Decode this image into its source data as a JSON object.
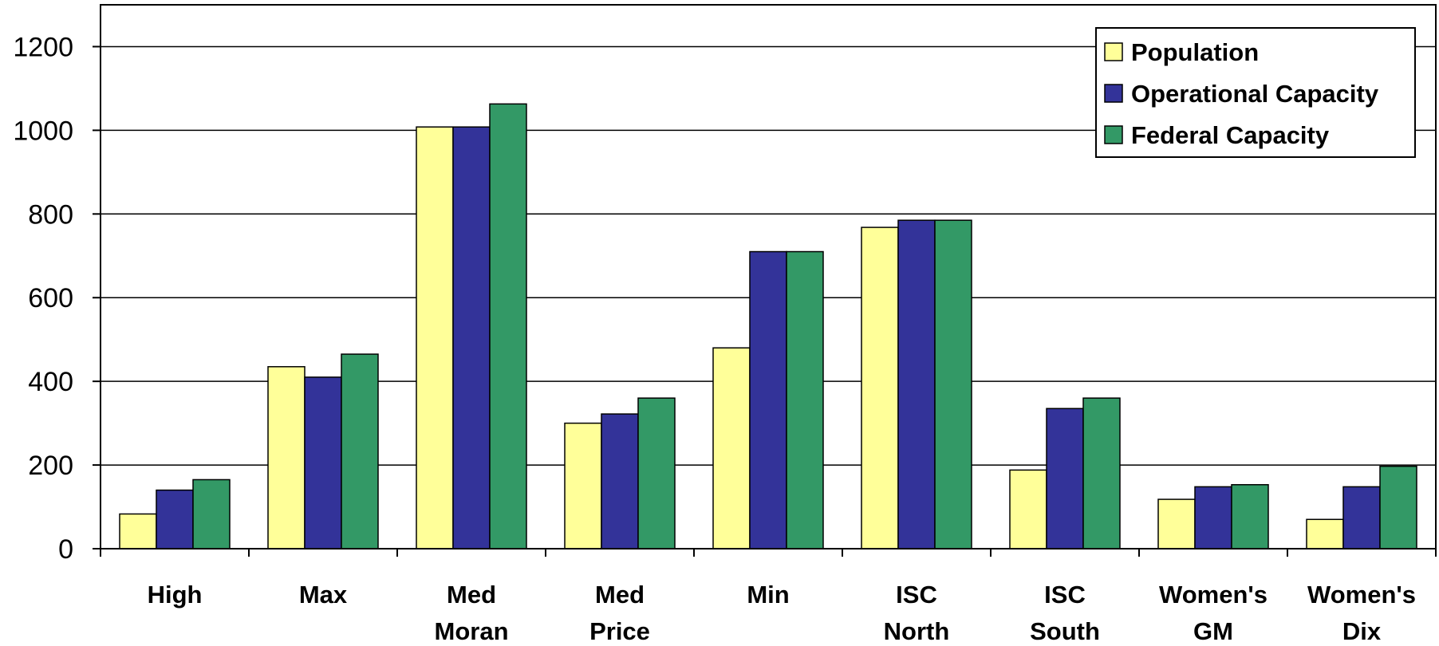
{
  "chart_data": {
    "type": "bar",
    "title": "",
    "xlabel": "",
    "ylabel": "",
    "categories": [
      [
        "High"
      ],
      [
        "Max"
      ],
      [
        "Med",
        "Moran"
      ],
      [
        "Med",
        "Price"
      ],
      [
        "Min"
      ],
      [
        "ISC",
        "North"
      ],
      [
        "ISC",
        "South"
      ],
      [
        "Women's",
        "GM"
      ],
      [
        "Women's",
        "Dix"
      ]
    ],
    "series": [
      {
        "name": "Population",
        "color": "#FFFF99",
        "values": [
          83,
          435,
          1008,
          300,
          480,
          768,
          188,
          118,
          70
        ]
      },
      {
        "name": "Operational Capacity",
        "color": "#333399",
        "values": [
          140,
          410,
          1008,
          322,
          710,
          785,
          335,
          148,
          148
        ]
      },
      {
        "name": "Federal Capacity",
        "color": "#339966",
        "values": [
          165,
          465,
          1063,
          360,
          710,
          785,
          360,
          153,
          197
        ]
      }
    ],
    "ylim": [
      0,
      1300
    ],
    "yticks": [
      0,
      200,
      400,
      600,
      800,
      1000,
      1200
    ],
    "grid": true,
    "legend": "top-right"
  }
}
